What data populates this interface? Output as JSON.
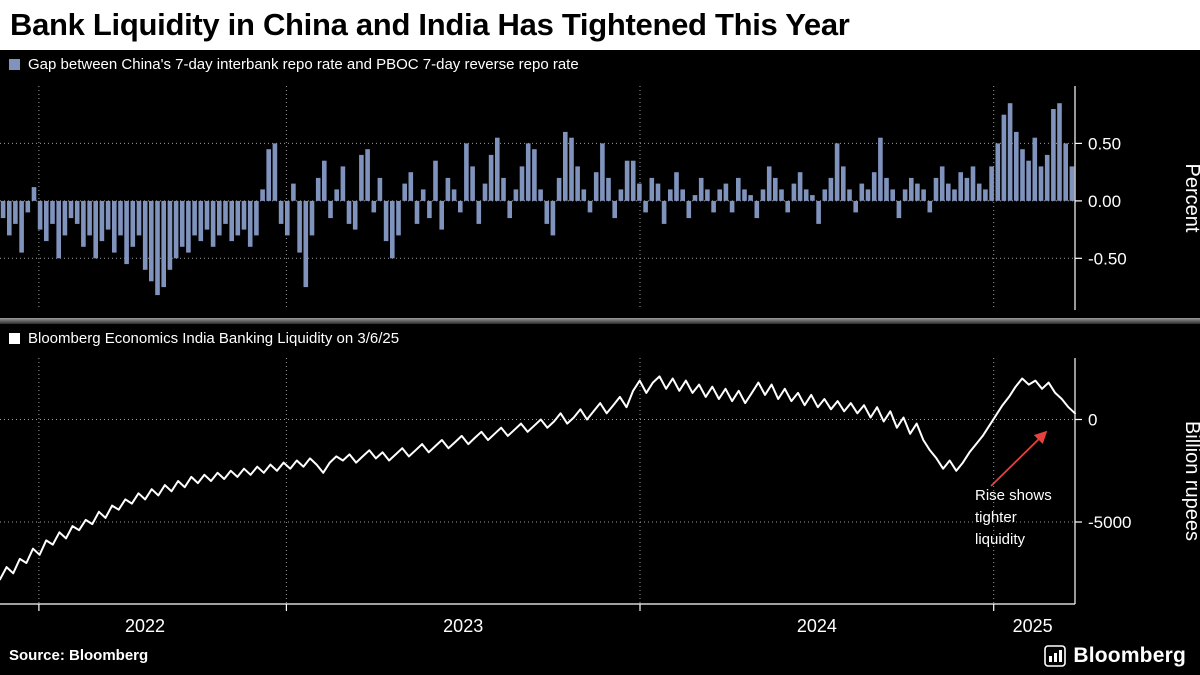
{
  "title": "Bank Liquidity in China and India Has Tightened This Year",
  "footer": {
    "source": "Source: Bloomberg",
    "brand": "Bloomberg"
  },
  "chart_data": [
    {
      "type": "bar",
      "legend": "Gap between China's 7-day interbank repo rate and PBOC 7-day reverse repo rate",
      "unit": "Percent",
      "color": "#7f93bd",
      "x_domain": [
        2022.19,
        2025.23
      ],
      "y_domain": [
        -0.95,
        1.0
      ],
      "x_gridlines": [
        2022.3,
        2023,
        2024,
        2025
      ],
      "y_ticks": [
        {
          "value": 0.5,
          "label": "0.50"
        },
        {
          "value": 0.0,
          "label": "0.00"
        },
        {
          "value": -0.5,
          "label": "-0.50"
        }
      ],
      "values": [
        -0.15,
        -0.3,
        -0.2,
        -0.45,
        -0.1,
        0.12,
        -0.25,
        -0.35,
        -0.2,
        -0.5,
        -0.3,
        -0.15,
        -0.2,
        -0.4,
        -0.3,
        -0.5,
        -0.35,
        -0.25,
        -0.45,
        -0.3,
        -0.55,
        -0.4,
        -0.3,
        -0.6,
        -0.7,
        -0.82,
        -0.75,
        -0.6,
        -0.5,
        -0.4,
        -0.45,
        -0.3,
        -0.35,
        -0.25,
        -0.4,
        -0.3,
        -0.2,
        -0.35,
        -0.3,
        -0.25,
        -0.4,
        -0.3,
        0.1,
        0.45,
        0.5,
        -0.2,
        -0.3,
        0.15,
        -0.45,
        -0.75,
        -0.3,
        0.2,
        0.35,
        -0.15,
        0.1,
        0.3,
        -0.2,
        -0.25,
        0.4,
        0.45,
        -0.1,
        0.2,
        -0.35,
        -0.5,
        -0.3,
        0.15,
        0.25,
        -0.2,
        0.1,
        -0.15,
        0.35,
        -0.25,
        0.2,
        0.1,
        -0.1,
        0.5,
        0.3,
        -0.2,
        0.15,
        0.4,
        0.55,
        0.2,
        -0.15,
        0.1,
        0.3,
        0.5,
        0.45,
        0.1,
        -0.2,
        -0.3,
        0.2,
        0.6,
        0.55,
        0.3,
        0.1,
        -0.1,
        0.25,
        0.5,
        0.2,
        -0.15,
        0.1,
        0.35,
        0.35,
        0.15,
        -0.1,
        0.2,
        0.15,
        -0.2,
        0.1,
        0.25,
        0.1,
        -0.15,
        0.05,
        0.2,
        0.1,
        -0.1,
        0.1,
        0.15,
        -0.1,
        0.2,
        0.1,
        0.05,
        -0.15,
        0.1,
        0.3,
        0.2,
        0.1,
        -0.1,
        0.15,
        0.25,
        0.1,
        0.05,
        -0.2,
        0.1,
        0.2,
        0.5,
        0.3,
        0.1,
        -0.1,
        0.15,
        0.1,
        0.25,
        0.55,
        0.2,
        0.1,
        -0.15,
        0.1,
        0.2,
        0.15,
        0.1,
        -0.1,
        0.2,
        0.3,
        0.15,
        0.1,
        0.25,
        0.2,
        0.3,
        0.15,
        0.1,
        0.3,
        0.5,
        0.75,
        0.85,
        0.6,
        0.45,
        0.35,
        0.55,
        0.3,
        0.4,
        0.8,
        0.85,
        0.5,
        0.3
      ]
    },
    {
      "type": "line",
      "legend": "Bloomberg Economics India Banking Liquidity on 3/6/25",
      "unit": "Billion rupees",
      "color": "#ffffff",
      "x_domain": [
        2022.19,
        2025.23
      ],
      "y_domain": [
        -9000,
        3000
      ],
      "x_gridlines": [
        2022.3,
        2023,
        2024,
        2025
      ],
      "y_ticks": [
        {
          "value": 0,
          "label": "0"
        },
        {
          "value": -5000,
          "label": "-5000"
        }
      ],
      "x_axis": true,
      "x_labels": [
        {
          "text": "2022",
          "pos": 2022.6
        },
        {
          "text": "2023",
          "pos": 2023.5
        },
        {
          "text": "2024",
          "pos": 2024.5
        },
        {
          "text": "2025",
          "pos": 2025.11
        }
      ],
      "annotation": {
        "lines": [
          "Rise shows",
          "tighter",
          "liquidity"
        ],
        "color": "#e8403a",
        "x": 975,
        "y": 148,
        "arrow": {
          "x1": 991,
          "y1": 134,
          "x2": 1046,
          "y2": 80
        }
      },
      "values": [
        -7800,
        -7200,
        -7500,
        -6800,
        -7000,
        -6300,
        -6600,
        -5900,
        -6100,
        -5500,
        -5800,
        -5200,
        -5400,
        -4900,
        -5100,
        -4500,
        -4800,
        -4200,
        -4400,
        -3900,
        -4100,
        -3600,
        -3900,
        -3400,
        -3700,
        -3200,
        -3500,
        -3000,
        -3300,
        -2800,
        -3100,
        -2700,
        -3000,
        -2600,
        -2900,
        -2500,
        -2800,
        -2400,
        -2700,
        -2300,
        -2600,
        -2200,
        -2500,
        -2100,
        -2400,
        -2000,
        -2300,
        -1900,
        -2200,
        -2600,
        -2100,
        -1800,
        -2000,
        -1700,
        -2100,
        -1800,
        -1500,
        -1900,
        -1600,
        -2000,
        -1700,
        -1400,
        -1800,
        -1500,
        -1200,
        -1600,
        -1300,
        -1000,
        -1400,
        -1100,
        -800,
        -1200,
        -900,
        -600,
        -1000,
        -700,
        -400,
        -800,
        -500,
        -200,
        -600,
        -300,
        0,
        -400,
        -100,
        300,
        -200,
        100,
        500,
        0,
        400,
        800,
        300,
        700,
        1100,
        600,
        1400,
        1900,
        1300,
        1800,
        2100,
        1500,
        2000,
        1400,
        1900,
        1300,
        1700,
        1100,
        1600,
        1000,
        1500,
        900,
        1400,
        800,
        1300,
        1800,
        1200,
        1700,
        1000,
        1500,
        900,
        1300,
        700,
        1200,
        600,
        1000,
        500,
        900,
        400,
        800,
        300,
        700,
        100,
        600,
        -100,
        400,
        -400,
        100,
        -700,
        -200,
        -1000,
        -1500,
        -1900,
        -2400,
        -2000,
        -2500,
        -2100,
        -1600,
        -1200,
        -800,
        -300,
        200,
        700,
        1100,
        1600,
        2000,
        1700,
        1900,
        1500,
        1800,
        1300,
        1000,
        600,
        300
      ]
    }
  ]
}
